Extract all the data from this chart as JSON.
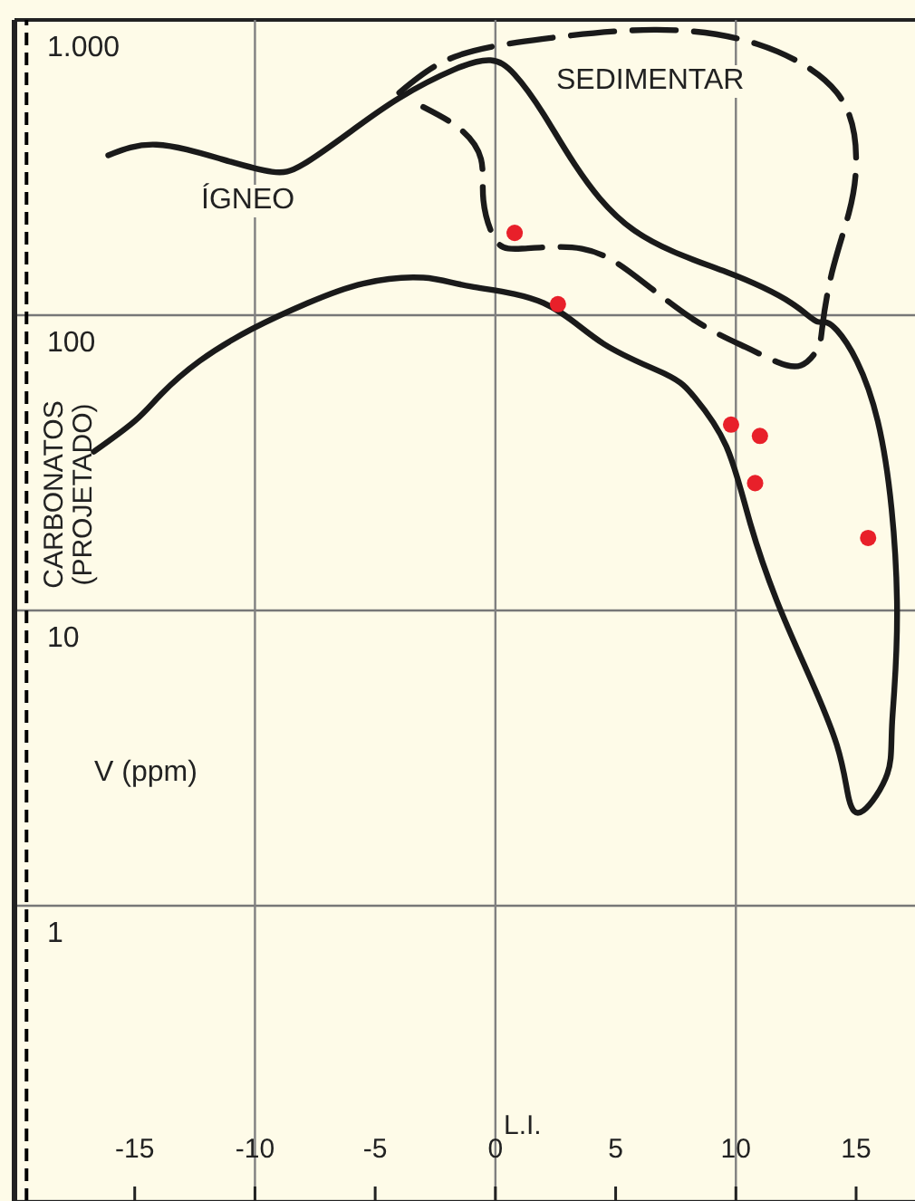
{
  "chart_data": {
    "type": "scatter",
    "xlabel": "L.I.",
    "ylabel": "V (ppm)",
    "log": "y",
    "grid": "y",
    "xlim": [
      -20,
      17.6
    ],
    "ylim": [
      0.1,
      1000
    ],
    "xticks": [
      -15,
      -10,
      -5,
      0,
      5,
      10,
      15
    ],
    "yticks": [
      1,
      10,
      100,
      {
        "value": 1000,
        "label": "1.000"
      }
    ],
    "ref_lines": [
      {
        "axis": "x",
        "value": -10,
        "label": null,
        "color": "#808080"
      },
      {
        "axis": "x",
        "value": 0,
        "label": null,
        "color": "#808080"
      },
      {
        "axis": "x",
        "value": 10,
        "label": null,
        "color": "#808080"
      },
      {
        "axis": "x",
        "value": -19.5,
        "label": "CARBONATOS (PROJETADO)",
        "color": "#000000",
        "line_style": "dashed"
      }
    ],
    "annotations": [
      "ÍGNEO",
      "SEDIMENTAR"
    ],
    "series": [
      {
        "color": "#e8202a",
        "marker": "circle",
        "x": [
          0.8,
          2.6,
          9.8,
          11.0,
          10.8,
          15.5
        ],
        "values": [
          190,
          109,
          42.6,
          39,
          27,
          17.6
        ]
      },
      {
        "type": "line",
        "color": "#1a1a1a",
        "line_style": "solid",
        "marker": "none",
        "x": [
          -16.1,
          -14.1,
          -11.4,
          -9.3,
          -8.0,
          -6.0,
          -4.0,
          -1.7,
          -0.2,
          0.8,
          2.0,
          3.3,
          5.8,
          9.6,
          12.3,
          13.4,
          14.2,
          15.9,
          16.7,
          16.5,
          16.3,
          15.3,
          14.7,
          14.2,
          12.9,
          11.7,
          10.6,
          9.6,
          8.3,
          7.1,
          4.5,
          2.0,
          -1.0,
          -3.0,
          -5.5,
          -7.8,
          -10.1,
          -12.3,
          -13.9,
          -15.0,
          -16.7
        ],
        "values": [
          348,
          378,
          338,
          306,
          324,
          420,
          544,
          680,
          730,
          653,
          480,
          324,
          193,
          140,
          110,
          95,
          89,
          43.8,
          10.8,
          4.2,
          2.8,
          2.1,
          2.3,
          3.5,
          6.4,
          10.8,
          19.7,
          36,
          52.5,
          63,
          80,
          110,
          125,
          134,
          128,
          110,
          90,
          70,
          54,
          43.8,
          34.5
        ]
      },
      {
        "type": "line",
        "color": "#1a1a1a",
        "line_style": "dashed",
        "marker": "none",
        "x": [
          -4.0,
          -1.7,
          2.0,
          6.6,
          10.9,
          14.2,
          15.0,
          14.7,
          14.0,
          13.6,
          13.4,
          12.7,
          11.7,
          10.4,
          8.3,
          5.8,
          3.6,
          1.1,
          0.0,
          -0.5,
          -0.6,
          -1.5,
          -3.0
        ],
        "values": [
          567,
          750,
          863,
          926,
          828,
          567,
          338,
          222,
          140,
          92,
          77,
          67.6,
          69.5,
          78,
          96,
          136,
          168,
          168,
          180,
          245,
          338,
          429,
          507
        ]
      }
    ]
  }
}
